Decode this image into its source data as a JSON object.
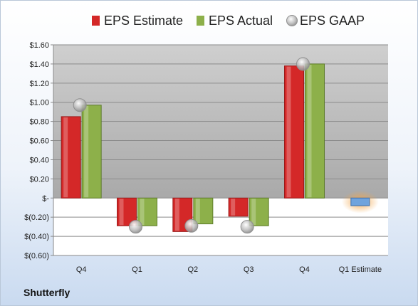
{
  "company": "Shutterfly",
  "colors": {
    "estimate": "#d42828",
    "actual": "#8db04a",
    "gaap": "#b8b8b8",
    "forecast": "#6fa3dd",
    "forecast_glow": "#f3a64a"
  },
  "chart_data": {
    "type": "bar",
    "title": "",
    "xlabel": "",
    "ylabel": "",
    "ylim": [
      -0.6,
      1.6
    ],
    "grid": true,
    "legend_position": "top",
    "categories": [
      "Q4",
      "Q1",
      "Q2",
      "Q3",
      "Q4",
      "Q1 Estimate"
    ],
    "y_ticks": [
      {
        "value": 1.6,
        "label": "$1.60"
      },
      {
        "value": 1.4,
        "label": "$1.40"
      },
      {
        "value": 1.2,
        "label": "$1.20"
      },
      {
        "value": 1.0,
        "label": "$1.00"
      },
      {
        "value": 0.8,
        "label": "$0.80"
      },
      {
        "value": 0.6,
        "label": "$0.60"
      },
      {
        "value": 0.4,
        "label": "$0.40"
      },
      {
        "value": 0.2,
        "label": "$0.20"
      },
      {
        "value": 0.0,
        "label": "$-"
      },
      {
        "value": -0.2,
        "label": "$(0.20)"
      },
      {
        "value": -0.4,
        "label": "$(0.40)"
      },
      {
        "value": -0.6,
        "label": "$(0.60)"
      }
    ],
    "series": [
      {
        "name": "EPS Estimate",
        "kind": "bar",
        "values": [
          0.85,
          -0.29,
          -0.35,
          -0.19,
          1.38,
          null
        ]
      },
      {
        "name": "EPS Actual",
        "kind": "bar",
        "values": [
          0.97,
          -0.29,
          -0.27,
          -0.29,
          1.4,
          null
        ]
      },
      {
        "name": "EPS GAAP",
        "kind": "point",
        "values": [
          0.97,
          -0.3,
          -0.29,
          -0.3,
          1.4,
          null
        ]
      }
    ],
    "forecast": {
      "category_index": 5,
      "value": -0.08
    }
  }
}
